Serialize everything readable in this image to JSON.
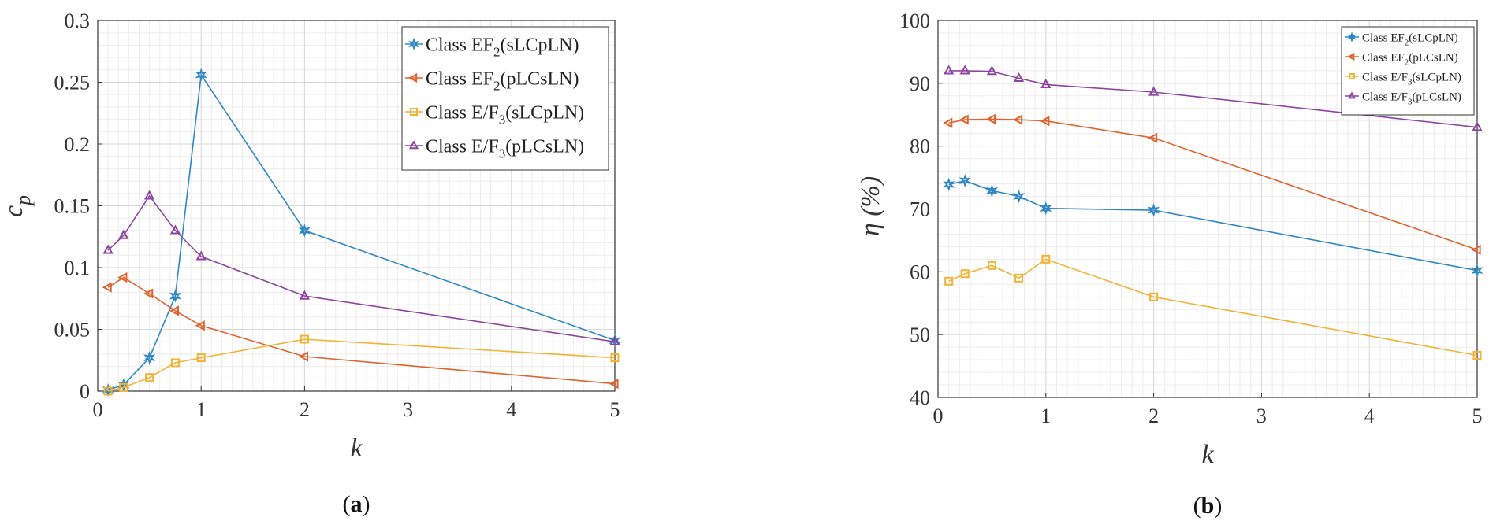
{
  "chart_data": [
    {
      "type": "line",
      "id": "a",
      "panel_label_open": "(",
      "panel_label_letter": "a",
      "panel_label_close": ")",
      "xlabel": "k",
      "ylabel": "c",
      "ylabel_sub": "p",
      "xlim": [
        0,
        5
      ],
      "ylim": [
        0,
        0.3
      ],
      "xticks": [
        "0",
        "1",
        "2",
        "3",
        "4",
        "5"
      ],
      "yticks": [
        "0",
        "0.05",
        "0.1",
        "0.15",
        "0.2",
        "0.25",
        "0.3"
      ],
      "grid": true,
      "legend_position": "top-right",
      "x": [
        0.1,
        0.25,
        0.5,
        0.75,
        1,
        2,
        5
      ],
      "series": [
        {
          "name_pre": "Class EF",
          "name_sub": "2",
          "name_post": "(sLCpLN)",
          "marker": "star",
          "color": "#2f86c5",
          "values": [
            0.001,
            0.005,
            0.027,
            0.077,
            0.256,
            0.13,
            0.041
          ]
        },
        {
          "name_pre": "Class EF",
          "name_sub": "2",
          "name_post": "(pLCsLN)",
          "marker": "triangle-left",
          "color": "#e0622d",
          "values": [
            0.084,
            0.092,
            0.079,
            0.065,
            0.053,
            0.028,
            0.006
          ]
        },
        {
          "name_pre": "Class E/F",
          "name_sub": "3",
          "name_post": "(sLCpLN)",
          "marker": "square",
          "color": "#f2b233",
          "values": [
            0.0,
            0.003,
            0.011,
            0.023,
            0.027,
            0.042,
            0.027
          ]
        },
        {
          "name_pre": "Class E/F",
          "name_sub": "3",
          "name_post": "(pLCsLN)",
          "marker": "triangle-up",
          "color": "#8e44a0",
          "values": [
            0.114,
            0.126,
            0.158,
            0.13,
            0.109,
            0.077,
            0.04
          ]
        }
      ]
    },
    {
      "type": "line",
      "id": "b",
      "panel_label_open": "(",
      "panel_label_letter": "b",
      "panel_label_close": ")",
      "xlabel": "k",
      "ylabel": "η (%)",
      "ylabel_sub": "",
      "xlim": [
        0,
        5
      ],
      "ylim": [
        40,
        100
      ],
      "xticks": [
        "0",
        "1",
        "2",
        "3",
        "4",
        "5"
      ],
      "yticks": [
        "40",
        "50",
        "60",
        "70",
        "80",
        "90",
        "100"
      ],
      "grid": true,
      "legend_position": "top-right",
      "x": [
        0.1,
        0.25,
        0.5,
        0.75,
        1,
        2,
        5
      ],
      "series": [
        {
          "name_pre": "Class EF",
          "name_sub": "2",
          "name_post": "(sLCpLN)",
          "marker": "star",
          "color": "#2f86c5",
          "values": [
            73.9,
            74.5,
            72.9,
            72.0,
            70.1,
            69.8,
            60.2
          ]
        },
        {
          "name_pre": "Class EF",
          "name_sub": "2",
          "name_post": "(pLCsLN)",
          "marker": "triangle-left",
          "color": "#e0622d",
          "values": [
            83.7,
            84.2,
            84.3,
            84.2,
            84.0,
            81.3,
            63.5
          ]
        },
        {
          "name_pre": "Class E/F",
          "name_sub": "3",
          "name_post": "(sLCpLN)",
          "marker": "square",
          "color": "#f2b233",
          "values": [
            58.5,
            59.7,
            61.0,
            59.0,
            62.0,
            56.0,
            46.7
          ]
        },
        {
          "name_pre": "Class E/F",
          "name_sub": "3",
          "name_post": "(pLCsLN)",
          "marker": "triangle-up",
          "color": "#8e44a0",
          "values": [
            92.0,
            92.0,
            91.9,
            90.8,
            89.8,
            88.6,
            83.0
          ]
        }
      ]
    }
  ]
}
